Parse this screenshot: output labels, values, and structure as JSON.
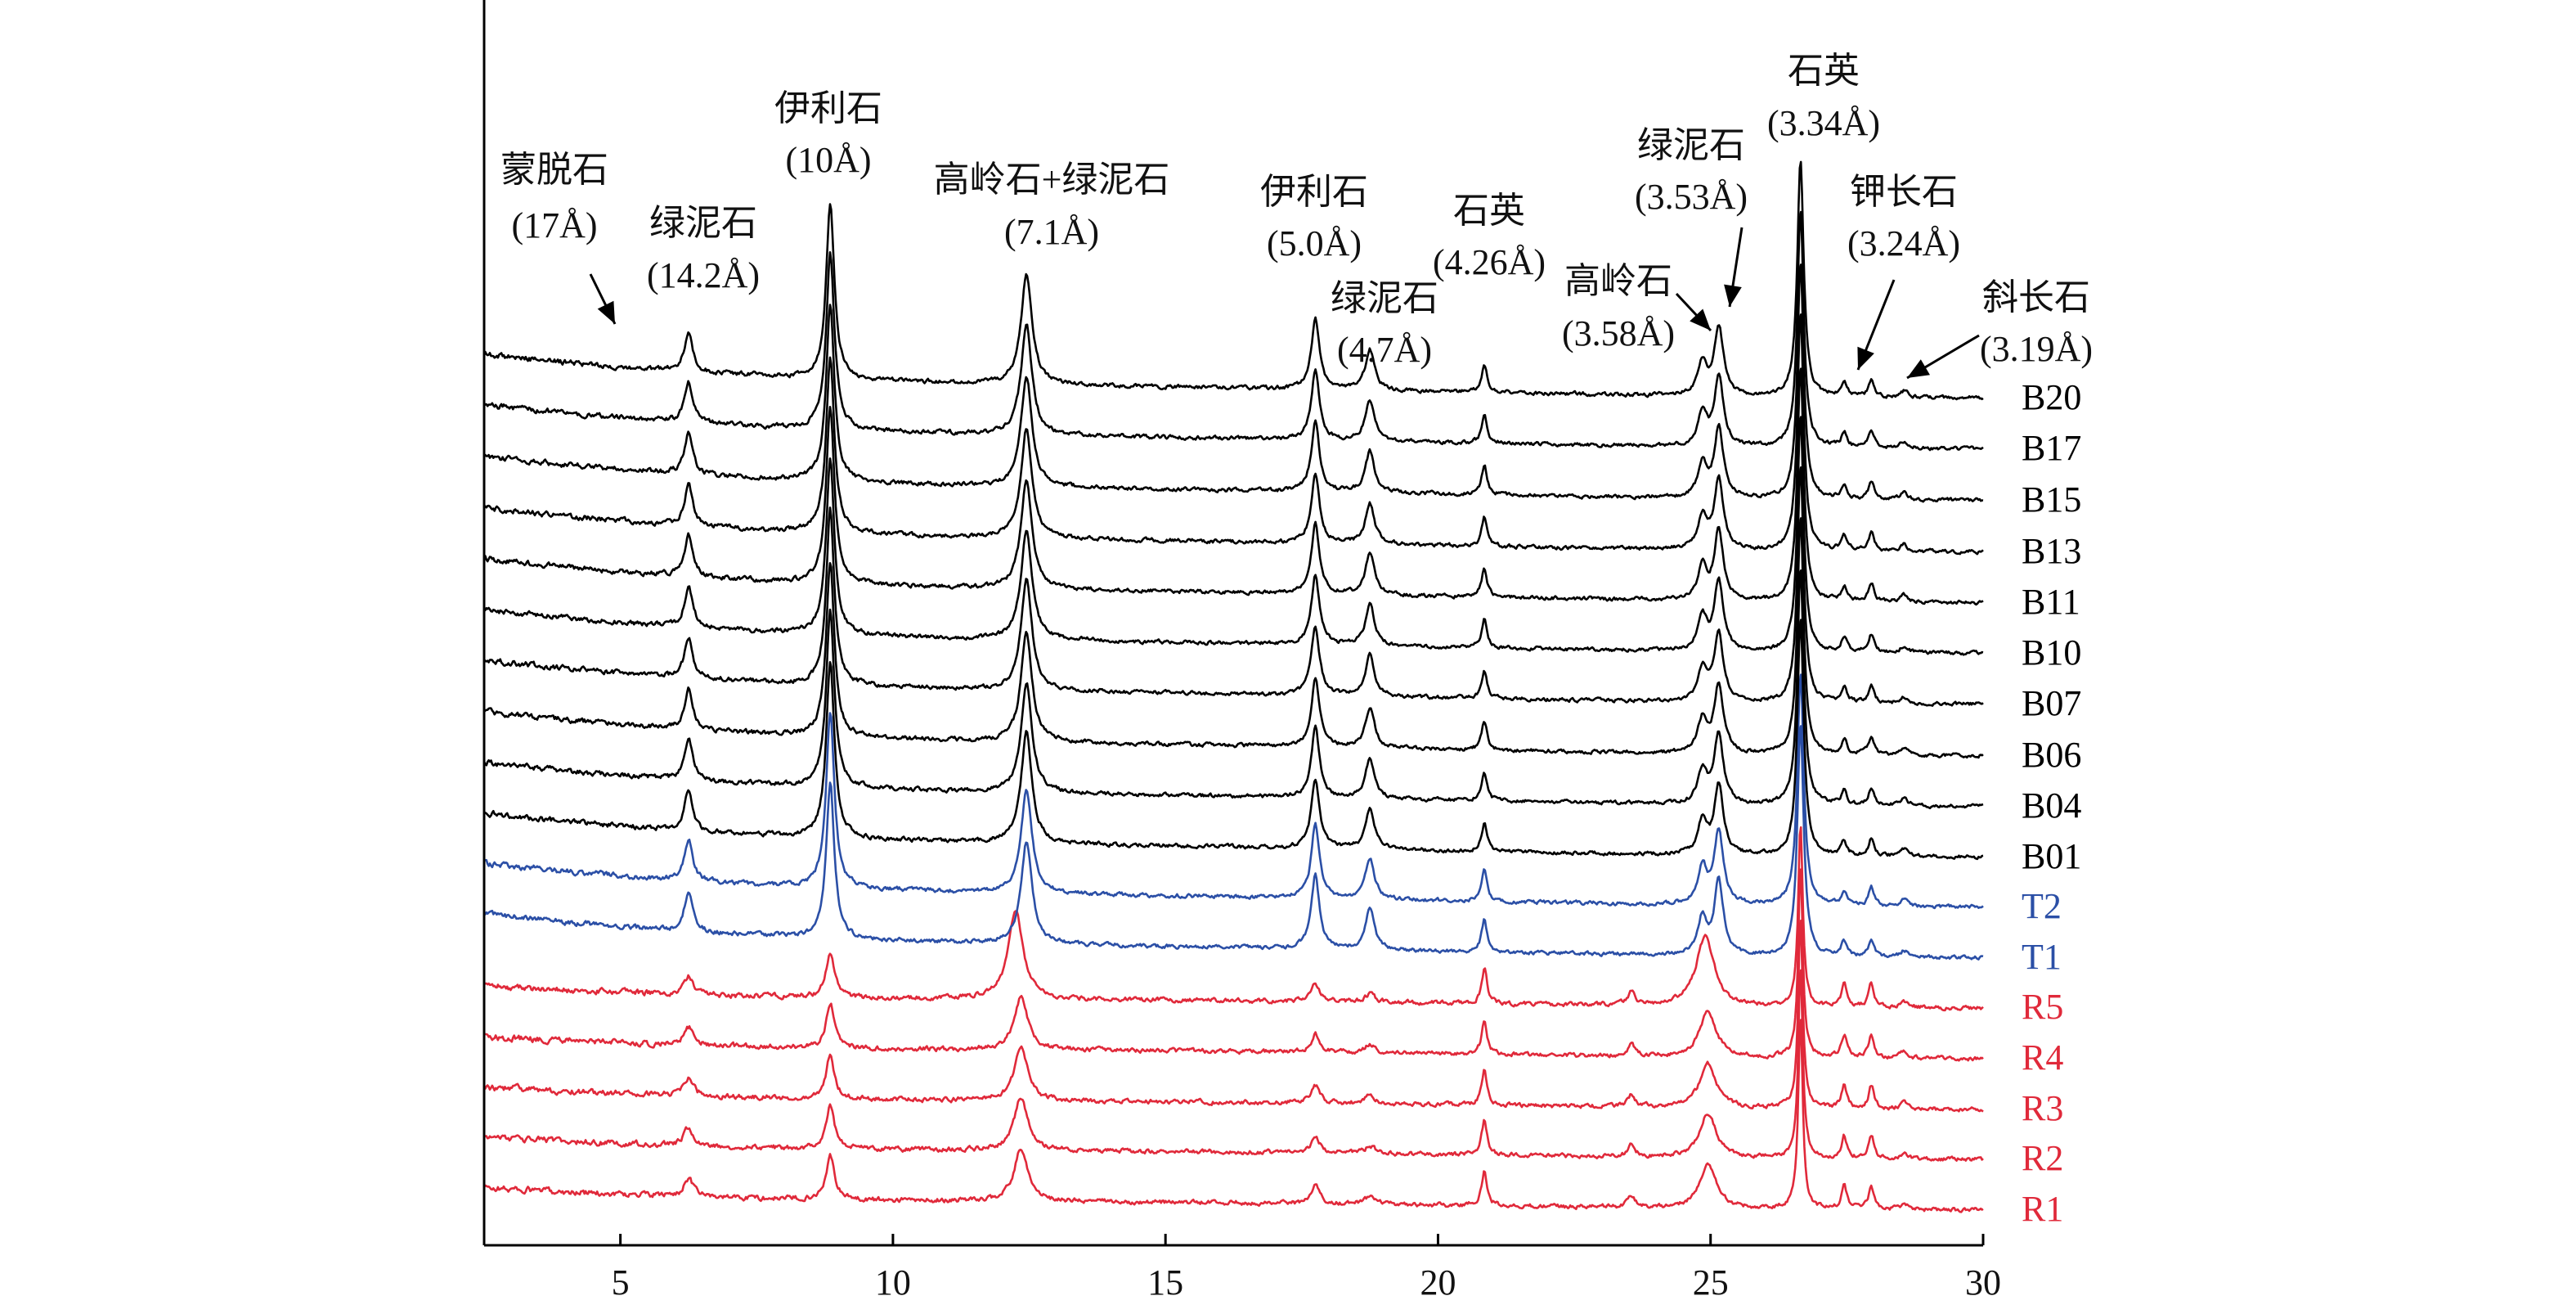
{
  "colors": {
    "B": "#000000",
    "T": "#2b4fa6",
    "R": "#e0293a",
    "axis": "#000000"
  },
  "chart_data": {
    "type": "line",
    "title": "",
    "xlabel": "",
    "ylabel": "",
    "xlim": [
      2.5,
      30
    ],
    "xticks": [
      5,
      10,
      15,
      20,
      25,
      30
    ],
    "grid": false,
    "y_axis_ticks": false,
    "legend": "sample labels at right end of each trace",
    "series": [
      {
        "name": "B20",
        "group": "B",
        "color": "#000000"
      },
      {
        "name": "B17",
        "group": "B",
        "color": "#000000"
      },
      {
        "name": "B15",
        "group": "B",
        "color": "#000000"
      },
      {
        "name": "B13",
        "group": "B",
        "color": "#000000"
      },
      {
        "name": "B11",
        "group": "B",
        "color": "#000000"
      },
      {
        "name": "B10",
        "group": "B",
        "color": "#000000"
      },
      {
        "name": "B07",
        "group": "B",
        "color": "#000000"
      },
      {
        "name": "B06",
        "group": "B",
        "color": "#000000"
      },
      {
        "name": "B04",
        "group": "B",
        "color": "#000000"
      },
      {
        "name": "B01",
        "group": "B",
        "color": "#000000"
      },
      {
        "name": "T2",
        "group": "T",
        "color": "#2b4fa6"
      },
      {
        "name": "T1",
        "group": "T",
        "color": "#2b4fa6"
      },
      {
        "name": "R5",
        "group": "R",
        "color": "#e0293a"
      },
      {
        "name": "R4",
        "group": "R",
        "color": "#e0293a"
      },
      {
        "name": "R3",
        "group": "R",
        "color": "#e0293a"
      },
      {
        "name": "R2",
        "group": "R",
        "color": "#e0293a"
      },
      {
        "name": "R1",
        "group": "R",
        "color": "#e0293a"
      }
    ],
    "peaks": [
      {
        "x": 5.2,
        "mineral": "蒙脱石",
        "d": "(17Å)"
      },
      {
        "x": 6.25,
        "mineral": "绿泥石",
        "d": "(14.2Å)"
      },
      {
        "x": 8.85,
        "mineral": "伊利石",
        "d": "(10Å)"
      },
      {
        "x": 12.45,
        "mineral": "高岭石+绿泥石",
        "d": "(7.1Å)"
      },
      {
        "x": 17.75,
        "mineral": "伊利石",
        "d": "(5.0Å)"
      },
      {
        "x": 18.75,
        "mineral": "绿泥石",
        "d": "(4.7Å)"
      },
      {
        "x": 20.85,
        "mineral": "石英",
        "d": "(4.26Å)"
      },
      {
        "x": 24.9,
        "mineral": "高岭石",
        "d": "(3.58Å)"
      },
      {
        "x": 25.15,
        "mineral": "绿泥石",
        "d": "(3.53Å)"
      },
      {
        "x": 26.65,
        "mineral": "石英",
        "d": "(3.34Å)"
      },
      {
        "x": 27.45,
        "mineral": "钾长石",
        "d": "(3.24Å)"
      },
      {
        "x": 27.95,
        "mineral": "斜长石",
        "d": "(3.19Å)"
      }
    ]
  }
}
